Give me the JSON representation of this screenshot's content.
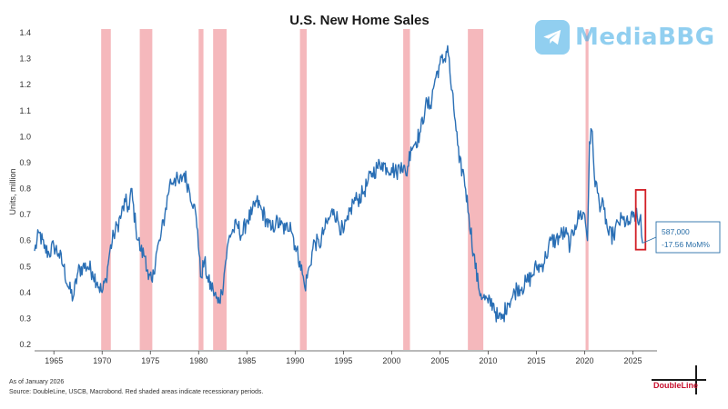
{
  "chart_data": {
    "type": "line",
    "title": "U.S. New Home Sales",
    "xlabel": "",
    "ylabel": "Units, million",
    "xlim": [
      1963,
      2027.5
    ],
    "ylim": [
      0.2,
      1.4
    ],
    "x_ticks": [
      1965,
      1970,
      1975,
      1980,
      1985,
      1990,
      1995,
      2000,
      2005,
      2010,
      2015,
      2020,
      2025
    ],
    "x_tick_labels": [
      "1965",
      "1970",
      "1975",
      "1980",
      "1985",
      "1990",
      "1995",
      "2000",
      "2005",
      "2010",
      "2015",
      "2020",
      "2025"
    ],
    "y_ticks": [
      0.2,
      0.3,
      0.4,
      0.5,
      0.6,
      0.7,
      0.8,
      0.9,
      1.0,
      1.1,
      1.2,
      1.3,
      1.4
    ],
    "y_tick_labels": [
      "0.2",
      "0.3",
      "0.4",
      "0.5",
      "0.6",
      "0.7",
      "0.8",
      "0.9",
      "1.0",
      "1.1",
      "1.2",
      "1.3",
      "1.4"
    ],
    "series_color": "#2a6fb5",
    "recession_color": "#f5b8bc",
    "recessions": [
      [
        1969.9,
        1970.9
      ],
      [
        1973.9,
        1975.2
      ],
      [
        1980.0,
        1980.5
      ],
      [
        1981.5,
        1982.9
      ],
      [
        1990.5,
        1991.2
      ],
      [
        2001.2,
        2001.9
      ],
      [
        2007.9,
        2009.5
      ],
      [
        2020.1,
        2020.4
      ]
    ],
    "series": [
      {
        "name": "New Home Sales",
        "x": [
          1963.0,
          1963.5,
          1964.0,
          1964.5,
          1965.0,
          1965.5,
          1966.0,
          1966.5,
          1967.0,
          1967.5,
          1968.0,
          1968.5,
          1969.0,
          1969.5,
          1970.0,
          1970.4,
          1970.8,
          1971.2,
          1971.6,
          1972.0,
          1972.4,
          1972.8,
          1973.0,
          1973.5,
          1974.0,
          1974.5,
          1974.8,
          1975.2,
          1975.6,
          1976.0,
          1976.5,
          1977.0,
          1977.5,
          1978.0,
          1978.5,
          1979.0,
          1979.5,
          1979.9,
          1980.2,
          1980.6,
          1981.0,
          1981.5,
          1982.0,
          1982.4,
          1982.8,
          1983.2,
          1983.6,
          1984.0,
          1984.5,
          1985.0,
          1985.5,
          1986.0,
          1986.5,
          1987.0,
          1987.5,
          1988.0,
          1988.5,
          1989.0,
          1989.5,
          1990.0,
          1990.5,
          1991.0,
          1991.5,
          1992.0,
          1992.5,
          1993.0,
          1993.5,
          1994.0,
          1994.5,
          1995.0,
          1995.5,
          1996.0,
          1996.5,
          1997.0,
          1997.5,
          1998.0,
          1998.5,
          1999.0,
          1999.5,
          2000.0,
          2000.5,
          2001.0,
          2001.5,
          2002.0,
          2002.5,
          2003.0,
          2003.5,
          2004.0,
          2004.5,
          2005.0,
          2005.5,
          2005.8,
          2006.2,
          2006.6,
          2007.0,
          2007.5,
          2008.0,
          2008.5,
          2009.0,
          2009.5,
          2010.0,
          2010.5,
          2011.0,
          2011.5,
          2012.0,
          2012.5,
          2013.0,
          2013.5,
          2014.0,
          2014.5,
          2015.0,
          2015.5,
          2016.0,
          2016.5,
          2017.0,
          2017.5,
          2018.0,
          2018.5,
          2019.0,
          2019.5,
          2020.0,
          2020.3,
          2020.5,
          2020.8,
          2021.0,
          2021.5,
          2022.0,
          2022.5,
          2023.0,
          2023.5,
          2024.0,
          2024.5,
          2025.0,
          2025.3,
          2025.6,
          2025.8,
          2026.0
        ],
        "y": [
          0.56,
          0.63,
          0.57,
          0.55,
          0.58,
          0.55,
          0.5,
          0.42,
          0.38,
          0.48,
          0.5,
          0.5,
          0.48,
          0.44,
          0.4,
          0.45,
          0.56,
          0.62,
          0.66,
          0.7,
          0.75,
          0.72,
          0.8,
          0.65,
          0.56,
          0.54,
          0.45,
          0.44,
          0.55,
          0.6,
          0.7,
          0.82,
          0.84,
          0.82,
          0.86,
          0.8,
          0.74,
          0.64,
          0.46,
          0.52,
          0.44,
          0.41,
          0.36,
          0.4,
          0.52,
          0.62,
          0.64,
          0.66,
          0.62,
          0.68,
          0.7,
          0.75,
          0.72,
          0.68,
          0.64,
          0.67,
          0.66,
          0.64,
          0.67,
          0.58,
          0.52,
          0.42,
          0.5,
          0.6,
          0.58,
          0.64,
          0.68,
          0.72,
          0.67,
          0.63,
          0.68,
          0.75,
          0.76,
          0.78,
          0.82,
          0.86,
          0.88,
          0.9,
          0.88,
          0.88,
          0.86,
          0.9,
          0.85,
          0.96,
          0.98,
          1.02,
          1.12,
          1.12,
          1.22,
          1.28,
          1.3,
          1.35,
          1.18,
          1.06,
          0.9,
          0.85,
          0.7,
          0.55,
          0.42,
          0.38,
          0.36,
          0.36,
          0.3,
          0.3,
          0.36,
          0.38,
          0.42,
          0.42,
          0.44,
          0.46,
          0.5,
          0.5,
          0.54,
          0.6,
          0.6,
          0.62,
          0.63,
          0.58,
          0.66,
          0.7,
          0.7,
          0.6,
          0.98,
          1.02,
          0.85,
          0.75,
          0.72,
          0.62,
          0.62,
          0.67,
          0.68,
          0.66,
          0.69,
          0.7,
          0.66,
          0.7,
          0.59
        ]
      }
    ],
    "callout": {
      "value_label": "587,000",
      "change_label": "-17.56 MoM%",
      "highlight_x": [
        2025.3,
        2026.3
      ],
      "highlight_y": [
        0.565,
        0.795
      ],
      "box_color": "#d21f26"
    }
  },
  "footer": {
    "as_of": "As of January 2026",
    "source": "Source: DoubleLine, USCB, Macrobond. Red shaded areas indicate recessionary periods."
  },
  "watermark": {
    "text": "MediaBBG",
    "icon": "telegram-plane-icon",
    "color": "#39a8e4"
  },
  "brand": {
    "name": "DoubleLine",
    "color": "#c8102e"
  }
}
